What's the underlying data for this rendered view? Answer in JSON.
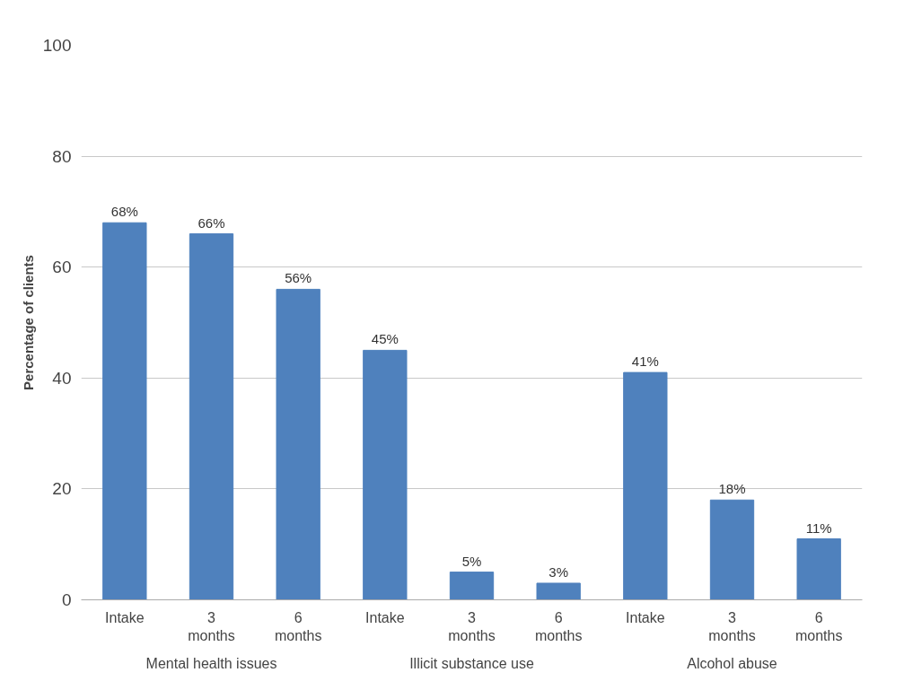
{
  "chart_data": {
    "type": "bar",
    "ylabel": "Percentage of clients",
    "categories": [
      "Intake",
      "3 months",
      "6 months",
      "Intake",
      "3 months",
      "6 months",
      "Intake",
      "3 months",
      "6 months"
    ],
    "values": [
      68,
      66,
      56,
      45,
      5,
      3,
      41,
      18,
      11
    ],
    "value_labels": [
      "68%",
      "66%",
      "56%",
      "45%",
      "5%",
      "3%",
      "41%",
      "18%",
      "11%"
    ],
    "color": "#4f81bd",
    "ylim": [
      0,
      100
    ],
    "yticks": [
      0,
      20,
      40,
      60,
      80,
      100
    ],
    "grid": "y",
    "annotations": [
      "Mental health issues",
      "Illicit substance use",
      "Alcohol abuse"
    ]
  }
}
